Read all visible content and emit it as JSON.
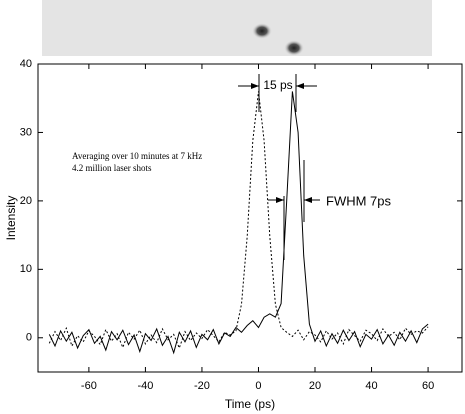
{
  "chart_data": {
    "type": "line",
    "xlabel": "Time (ps)",
    "ylabel": "Intensity",
    "annotations": [
      "15 ps",
      "FWHM 7ps",
      "Averaging over 10 minutes at 7 kHz",
      "4.2 million laser shots"
    ],
    "x": [
      -74,
      -72,
      -70,
      -68,
      -66,
      -64,
      -62,
      -60,
      -58,
      -56,
      -54,
      -52,
      -50,
      -48,
      -46,
      -44,
      -42,
      -40,
      -38,
      -36,
      -34,
      -32,
      -30,
      -28,
      -26,
      -24,
      -22,
      -20,
      -18,
      -16,
      -14,
      -12,
      -10,
      -8,
      -6,
      -4,
      -2,
      0,
      2,
      4,
      6,
      8,
      10,
      12,
      14,
      16,
      18,
      20,
      22,
      24,
      26,
      28,
      30,
      32,
      34,
      36,
      38,
      40,
      42,
      44,
      46,
      48,
      50,
      52,
      54,
      56,
      58,
      60
    ],
    "series": [
      {
        "color": "#000000",
        "dash": false,
        "values": [
          0.5,
          -1.2,
          1.0,
          -0.5,
          0.8,
          -1.5,
          0.3,
          1.2,
          -0.8,
          0.2,
          -1.8,
          0.9,
          -0.3,
          1.1,
          -1.0,
          0.4,
          -2.0,
          0.6,
          -0.4,
          1.3,
          -1.1,
          0.2,
          -2.2,
          0.8,
          -0.6,
          1.0,
          -1.4,
          0.5,
          -0.3,
          1.2,
          -0.9,
          0.7,
          0.2,
          1.5,
          0.8,
          1.8,
          2.5,
          1.5,
          3.0,
          3.5,
          3.0,
          5.0,
          20,
          36,
          30,
          12,
          2.0,
          -0.5,
          1.0,
          -1.2,
          0.6,
          -0.8,
          1.1,
          -0.4,
          0.9,
          -1.3,
          0.5,
          -0.2,
          1.2,
          -0.9,
          0.4,
          -1.1,
          0.8,
          -0.5,
          1.0,
          -0.7,
          1.3,
          2.0
        ]
      },
      {
        "color": "#000000",
        "dash": true,
        "values": [
          -0.8,
          0.9,
          -0.4,
          1.4,
          -1.2,
          0.3,
          -0.6,
          1.0,
          0.2,
          -1.0,
          1.2,
          -0.5,
          0.6,
          -1.4,
          0.8,
          -0.2,
          1.1,
          -0.9,
          0.4,
          -0.7,
          1.3,
          -0.3,
          0.5,
          -1.5,
          0.9,
          -0.4,
          0.7,
          -0.1,
          1.2,
          0.3,
          -0.6,
          0.8,
          0.4,
          1.0,
          4.9,
          14.8,
          28.8,
          36,
          28.8,
          14.8,
          4.9,
          1.5,
          0.8,
          0.2,
          1.1,
          -0.3,
          0.9,
          0.4,
          -0.6,
          1.0,
          -0.2,
          0.7,
          -0.9,
          1.2,
          0.3,
          -0.5,
          1.1,
          0.6,
          -0.4,
          1.3,
          0.2,
          0.8,
          -0.3,
          1.4,
          0.5,
          1.0,
          0.7,
          1.6
        ]
      }
    ],
    "xlim": [
      -78,
      72
    ],
    "ylim": [
      -5,
      40
    ],
    "xticks": [
      -60,
      -40,
      -20,
      0,
      20,
      40,
      60
    ],
    "yticks": [
      0,
      10,
      20,
      30,
      40
    ]
  }
}
